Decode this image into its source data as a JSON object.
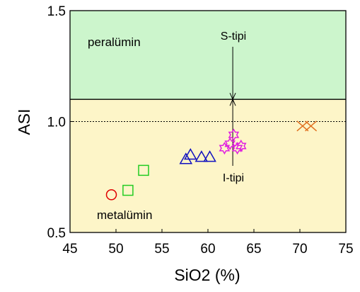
{
  "chart_data": {
    "type": "scatter",
    "xlabel": "SiO2 (%)",
    "ylabel": "ASI",
    "xlim": [
      45,
      75
    ],
    "ylim": [
      0.5,
      1.5
    ],
    "xticks": [
      "45",
      "50",
      "55",
      "60",
      "65",
      "70",
      "75"
    ],
    "yticks": [
      "0.5",
      "1.0",
      "1.5"
    ],
    "xtick_values": [
      45,
      50,
      55,
      60,
      65,
      70,
      75
    ],
    "ytick_values": [
      0.5,
      1.0,
      1.5
    ],
    "regions": [
      {
        "label": "peralümin",
        "y_from": 1.1,
        "y_to": 1.5,
        "color": "#ccf5cc"
      },
      {
        "label": "metalümin",
        "y_from": 0.5,
        "y_to": 1.1,
        "color": "#fdf5c8"
      }
    ],
    "reference_line": {
      "y": 1.0,
      "style": "dotted"
    },
    "boundary_line": {
      "y": 1.1,
      "style": "solid"
    },
    "annotations": {
      "s_type": {
        "label": "S-tipi",
        "x": 62.7
      },
      "i_type": {
        "label": "I-tipi",
        "x": 62.7
      }
    },
    "series": [
      {
        "marker": "circle",
        "color": "#e00000",
        "points": [
          [
            49.5,
            0.67
          ]
        ]
      },
      {
        "marker": "square",
        "color": "#22cc22",
        "points": [
          [
            51.3,
            0.69
          ],
          [
            53.0,
            0.78
          ]
        ]
      },
      {
        "marker": "triangle",
        "color": "#1010c0",
        "points": [
          [
            57.6,
            0.83
          ],
          [
            58.1,
            0.85
          ],
          [
            59.3,
            0.84
          ],
          [
            60.2,
            0.84
          ]
        ]
      },
      {
        "marker": "star",
        "color": "#e020e0",
        "points": [
          [
            61.8,
            0.88
          ],
          [
            62.4,
            0.9
          ],
          [
            62.8,
            0.94
          ],
          [
            63.2,
            0.88
          ],
          [
            63.6,
            0.89
          ]
        ]
      },
      {
        "marker": "cross",
        "color": "#e07020",
        "points": [
          [
            70.3,
            0.98
          ],
          [
            71.2,
            0.98
          ]
        ]
      }
    ]
  }
}
